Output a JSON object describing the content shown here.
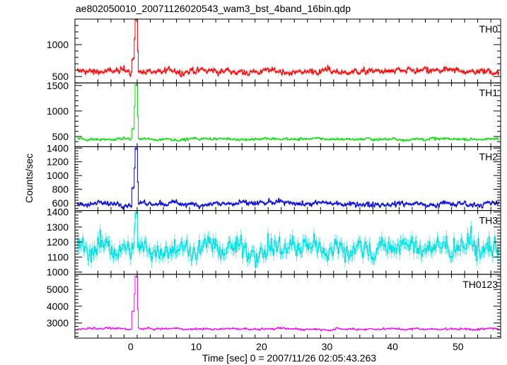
{
  "chart_data": {
    "type": "line",
    "title": "ae802050010_20071126020543_wam3_bst_4band_16bin.qdp",
    "xlabel": "Time [sec] 0 = 2007/11/26 02:05:43.263",
    "ylabel": "Counts/sec",
    "xlim": [
      -8.5,
      56.5
    ],
    "x_ticks": [
      0,
      10,
      20,
      30,
      40,
      50
    ],
    "x_tick_labels": [
      "0",
      "10",
      "20",
      "30",
      "40",
      "50"
    ],
    "grid": false,
    "legend": "none",
    "panels": [
      {
        "label": "TH0",
        "color": "#ff0000",
        "ylim": [
          400,
          1400
        ],
        "y_ticks": [
          500,
          1000
        ],
        "y_tick_labels": [
          "500",
          "1000"
        ],
        "baseline": 580,
        "noise": 45,
        "peak_time": 0.7,
        "peak_value": 1400,
        "pre_peak_value": 780
      },
      {
        "label": "TH1",
        "color": "#00e000",
        "ylim": [
          300,
          1550
        ],
        "y_ticks": [
          500,
          1000,
          1500
        ],
        "y_tick_labels": [
          "500",
          "1000",
          "1500"
        ],
        "baseline": 450,
        "noise": 25,
        "peak_time": 0.7,
        "peak_value": 1520,
        "pre_peak_value": 650
      },
      {
        "label": "TH2",
        "color": "#0000e0",
        "ylim": [
          490,
          1420
        ],
        "y_ticks": [
          600,
          800,
          1000,
          1200,
          1400
        ],
        "y_tick_labels": [
          "600",
          "800",
          "1000",
          "1200",
          "1400"
        ],
        "baseline": 590,
        "noise": 35,
        "peak_time": 0.7,
        "peak_value": 1400,
        "pre_peak_value": 820
      },
      {
        "label": "TH3",
        "color": "#00e0e0",
        "ylim": [
          985,
          1410
        ],
        "y_ticks": [
          1000,
          1100,
          1200,
          1300,
          1400
        ],
        "y_tick_labels": [
          "1000",
          "1100",
          "1200",
          "1300",
          "1400"
        ],
        "baseline": 1160,
        "noise": 70,
        "peak_time": 0.7,
        "peak_value": 1400,
        "pre_peak_value": 1180
      },
      {
        "label": "TH0123",
        "color": "#ff00ff",
        "ylim": [
          2100,
          5900
        ],
        "y_ticks": [
          3000,
          4000,
          5000
        ],
        "y_tick_labels": [
          "3000",
          "4000",
          "5000"
        ],
        "baseline": 2650,
        "noise": 60,
        "peak_time": 0.7,
        "peak_value": 5750,
        "pre_peak_value": 3700
      }
    ]
  }
}
